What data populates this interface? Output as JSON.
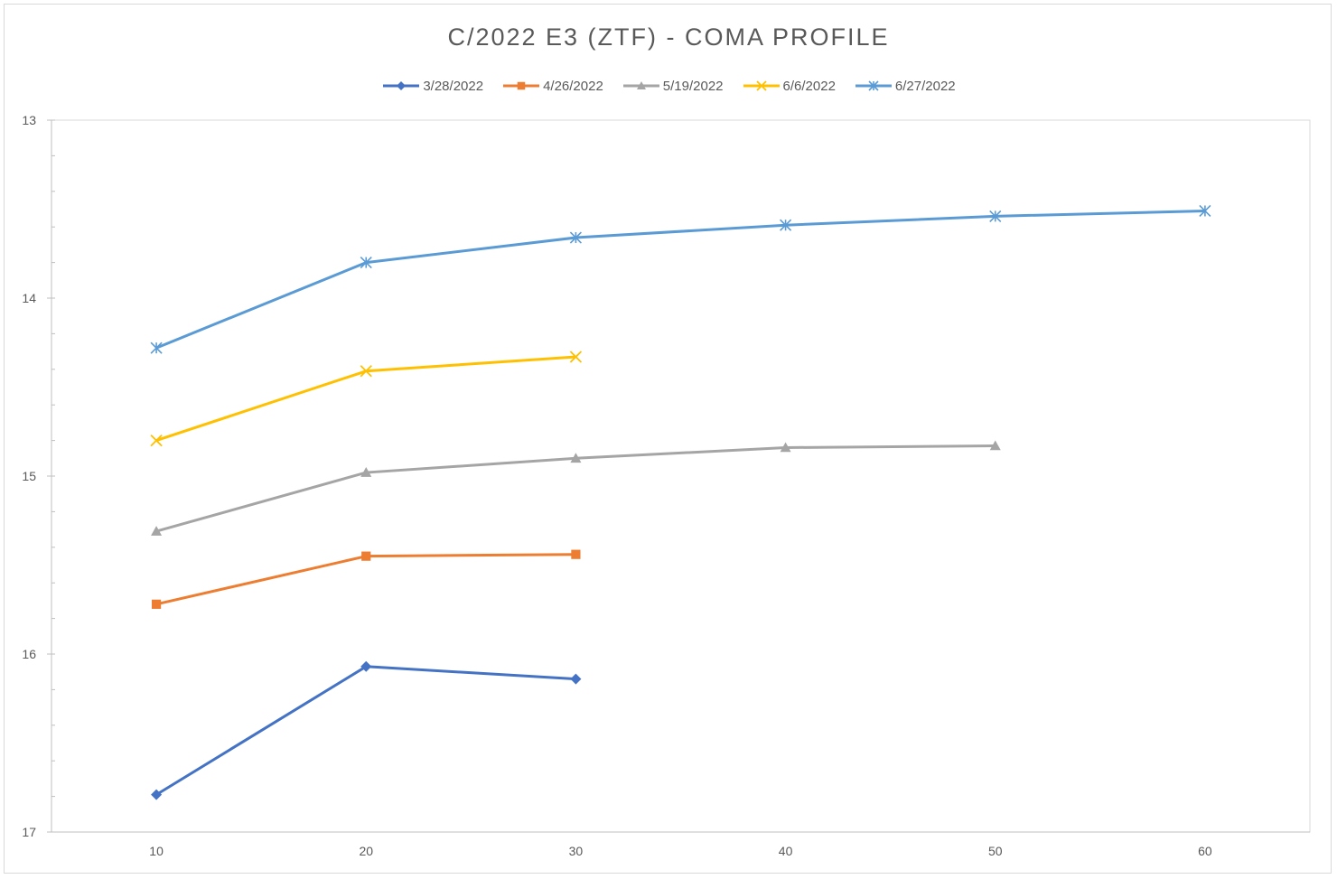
{
  "chart_data": {
    "type": "line",
    "title": "C/2022 E3 (ZTF) - COMA PROFILE",
    "xlabel": "",
    "ylabel": "",
    "xlim": [
      5,
      65
    ],
    "ylim": [
      13,
      17
    ],
    "y_inverted": true,
    "x_ticks": [
      "10",
      "20",
      "30",
      "40",
      "50",
      "60"
    ],
    "x_tick_values": [
      10,
      20,
      30,
      40,
      50,
      60
    ],
    "y_ticks": [
      "13",
      "14",
      "15",
      "16",
      "17"
    ],
    "y_tick_values": [
      13,
      14,
      15,
      16,
      17
    ],
    "grid": false,
    "legend_position": "top",
    "series": [
      {
        "name": "3/28/2022",
        "color": "#4472C4",
        "marker": "diamond",
        "x": [
          10,
          20,
          30
        ],
        "y": [
          16.79,
          16.07,
          16.14
        ]
      },
      {
        "name": "4/26/2022",
        "color": "#ED7D31",
        "marker": "square",
        "x": [
          10,
          20,
          30
        ],
        "y": [
          15.72,
          15.45,
          15.44
        ]
      },
      {
        "name": "5/19/2022",
        "color": "#A5A5A5",
        "marker": "triangle",
        "x": [
          10,
          20,
          30,
          40,
          50
        ],
        "y": [
          15.31,
          14.98,
          14.9,
          14.84,
          14.83
        ]
      },
      {
        "name": "6/6/2022",
        "color": "#FFC000",
        "marker": "x",
        "x": [
          10,
          20,
          30
        ],
        "y": [
          14.8,
          14.41,
          14.33
        ]
      },
      {
        "name": "6/27/2022",
        "color": "#5B9BD5",
        "marker": "star",
        "x": [
          10,
          20,
          30,
          40,
          50,
          60
        ],
        "y": [
          14.28,
          13.8,
          13.66,
          13.59,
          13.54,
          13.51
        ]
      }
    ]
  }
}
